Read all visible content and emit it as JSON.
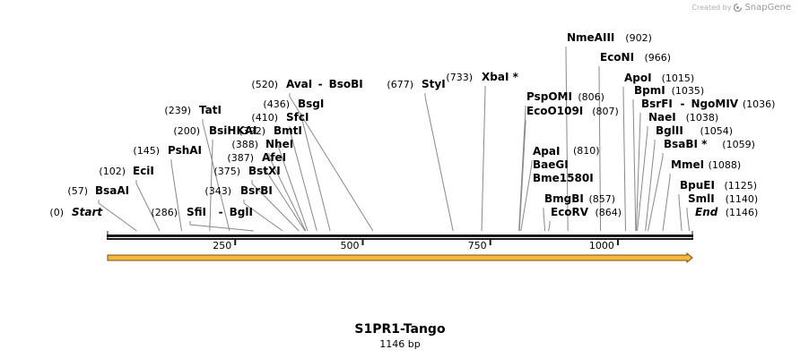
{
  "credit": {
    "prefix": "Created by",
    "brand": "SnapGene",
    "icon": "snapgene-logo-icon"
  },
  "sequence": {
    "name": "S1PR1-Tango",
    "length_label": "1146 bp",
    "length": 1146
  },
  "ruler": {
    "ticks": [
      250,
      500,
      750,
      1000
    ]
  },
  "feature": {
    "start": 0,
    "end": 1146,
    "color": "#f5b642",
    "direction": "forward"
  },
  "colors": {
    "backbone": "#1a1a1a",
    "site_line": "#888888",
    "feature_fill": "#f5b642",
    "feature_stroke": "#7a5200"
  },
  "sites": [
    {
      "names": [
        "Start"
      ],
      "pos": "(0)",
      "bp": 0,
      "italic": true
    },
    {
      "names": [
        "BsaAI"
      ],
      "pos": "(57)",
      "bp": 57
    },
    {
      "names": [
        "EciI"
      ],
      "pos": "(102)",
      "bp": 102
    },
    {
      "names": [
        "PshAI"
      ],
      "pos": "(145)",
      "bp": 145
    },
    {
      "names": [
        "BsiHKAI"
      ],
      "pos": "(200)",
      "bp": 200
    },
    {
      "names": [
        "TatI"
      ],
      "pos": "(239)",
      "bp": 239
    },
    {
      "names": [
        "SfiI",
        "BglI"
      ],
      "pos": "(286)",
      "bp": 286
    },
    {
      "names": [
        "BsrBI"
      ],
      "pos": "(343)",
      "bp": 343
    },
    {
      "names": [
        "BstXI"
      ],
      "pos": "(375)",
      "bp": 375
    },
    {
      "names": [
        "AfeI"
      ],
      "pos": "(387)",
      "bp": 387
    },
    {
      "names": [
        "NheI"
      ],
      "pos": "(388)",
      "bp": 388
    },
    {
      "names": [
        "BmtI"
      ],
      "pos": "(392)",
      "bp": 392
    },
    {
      "names": [
        "SfcI"
      ],
      "pos": "(410)",
      "bp": 410
    },
    {
      "names": [
        "BsgI"
      ],
      "pos": "(436)",
      "bp": 436
    },
    {
      "names": [
        "AvaI",
        "BsoBI"
      ],
      "pos": "(520)",
      "bp": 520
    },
    {
      "names": [
        "StyI"
      ],
      "pos": "(677)",
      "bp": 677
    },
    {
      "names": [
        "XbaI *"
      ],
      "pos": "(733)",
      "bp": 733
    },
    {
      "names": [
        "PspOMI"
      ],
      "pos": "(806)",
      "bp": 806
    },
    {
      "names": [
        "EcoO109I"
      ],
      "pos": "(807)",
      "bp": 807
    },
    {
      "names": [
        "ApaI",
        "BaeGI",
        "Bme1580I"
      ],
      "pos": "(810)",
      "bp": 810
    },
    {
      "names": [
        "BmgBI"
      ],
      "pos": "(857)",
      "bp": 857
    },
    {
      "names": [
        "EcoRV"
      ],
      "pos": "(864)",
      "bp": 864
    },
    {
      "names": [
        "NmeAIII"
      ],
      "pos": "(902)",
      "bp": 902
    },
    {
      "names": [
        "EcoNI"
      ],
      "pos": "(966)",
      "bp": 966
    },
    {
      "names": [
        "ApoI"
      ],
      "pos": "(1015)",
      "bp": 1015
    },
    {
      "names": [
        "BpmI"
      ],
      "pos": "(1035)",
      "bp": 1035
    },
    {
      "names": [
        "BsrFI",
        "NgoMIV"
      ],
      "pos": "(1036)",
      "bp": 1036
    },
    {
      "names": [
        "NaeI"
      ],
      "pos": "(1038)",
      "bp": 1038
    },
    {
      "names": [
        "BglII"
      ],
      "pos": "(1054)",
      "bp": 1054
    },
    {
      "names": [
        "BsaBI *"
      ],
      "pos": "(1059)",
      "bp": 1059
    },
    {
      "names": [
        "MmeI"
      ],
      "pos": "(1088)",
      "bp": 1088
    },
    {
      "names": [
        "BpuEI"
      ],
      "pos": "(1125)",
      "bp": 1125
    },
    {
      "names": [
        "SmlI"
      ],
      "pos": "(1140)",
      "bp": 1140
    },
    {
      "names": [
        "End"
      ],
      "pos": "(1146)",
      "bp": 1146,
      "italic": true
    }
  ]
}
